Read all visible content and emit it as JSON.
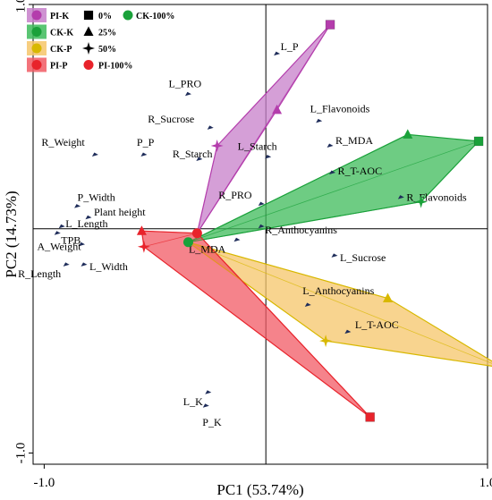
{
  "chart_data": {
    "type": "scatter",
    "subtype": "pca-biplot",
    "xlabel": "PC1 (53.74%)",
    "ylabel": "PC2 (14.73%)",
    "xlim": [
      -1.05,
      1.0
    ],
    "ylim": [
      -1.05,
      1.0
    ],
    "x_ticks": [
      {
        "value": -1.0,
        "label": "-1.0"
      },
      {
        "value": 1.0,
        "label": "1.0"
      }
    ],
    "y_ticks": [
      {
        "value": 1.0,
        "label": "1.0"
      },
      {
        "value": -1.0,
        "label": "-1.0"
      }
    ],
    "grid": false,
    "zero_lines": true,
    "legend_position": "top-left",
    "groups": [
      {
        "name": "PI-K",
        "color": "#b43dac",
        "fill": "#c77fca",
        "points": [
          {
            "level": "0%",
            "x": 0.29,
            "y": 0.91
          },
          {
            "level": "25%",
            "x": 0.05,
            "y": 0.53
          },
          {
            "level": "50%",
            "x": -0.22,
            "y": 0.37
          }
        ]
      },
      {
        "name": "CK-K",
        "color": "#1aa13a",
        "fill": "#3dbb5a",
        "points": [
          {
            "level": "0%",
            "x": 0.96,
            "y": 0.39
          },
          {
            "level": "25%",
            "x": 0.64,
            "y": 0.42
          },
          {
            "level": "50%",
            "x": 0.7,
            "y": 0.12
          }
        ]
      },
      {
        "name": "CK-P",
        "color": "#d8b800",
        "fill": "#f6c66a",
        "points": [
          {
            "level": "0%",
            "x": 1.07,
            "y": -0.62
          },
          {
            "level": "25%",
            "x": 0.55,
            "y": -0.31
          },
          {
            "level": "50%",
            "x": 0.27,
            "y": -0.5
          }
        ]
      },
      {
        "name": "PI-P",
        "color": "#e8232b",
        "fill": "#f15a64",
        "points": [
          {
            "level": "0%",
            "x": 0.47,
            "y": -0.84
          },
          {
            "level": "25%",
            "x": -0.56,
            "y": -0.01
          },
          {
            "level": "50%",
            "x": -0.55,
            "y": -0.08
          }
        ]
      }
    ],
    "centroids": [
      {
        "group": "PI-P",
        "level": "100%",
        "x": -0.31,
        "y": -0.02
      },
      {
        "group": "CK",
        "level": "100%",
        "x": -0.35,
        "y": -0.06
      }
    ],
    "loadings": [
      {
        "label": "L_P",
        "x": 0.05,
        "y": 0.78
      },
      {
        "label": "L_PRO",
        "x": -0.35,
        "y": 0.6
      },
      {
        "label": "L_Flavonoids",
        "x": 0.24,
        "y": 0.48
      },
      {
        "label": "R_Sucrose",
        "x": -0.25,
        "y": 0.45
      },
      {
        "label": "R_MDA",
        "x": 0.29,
        "y": 0.37
      },
      {
        "label": "R_Weight",
        "x": -0.77,
        "y": 0.33
      },
      {
        "label": "P_P",
        "x": -0.55,
        "y": 0.33
      },
      {
        "label": "R_Starch",
        "x": -0.3,
        "y": 0.31
      },
      {
        "label": "L_Starch",
        "x": 0.01,
        "y": 0.32
      },
      {
        "label": "R_T-AOC",
        "x": 0.3,
        "y": 0.25
      },
      {
        "label": "R_Flavonoids",
        "x": 0.61,
        "y": 0.14
      },
      {
        "label": "R_PRO",
        "x": -0.02,
        "y": 0.11
      },
      {
        "label": "P_Width",
        "x": -0.85,
        "y": 0.1
      },
      {
        "label": "Plant height",
        "x": -0.8,
        "y": 0.05
      },
      {
        "label": "L_Length",
        "x": -0.92,
        "y": 0.01
      },
      {
        "label": "TPB",
        "x": -0.94,
        "y": -0.02
      },
      {
        "label": "R_Anthocyanins",
        "x": -0.02,
        "y": 0.01
      },
      {
        "label": "L_MDA",
        "x": -0.13,
        "y": -0.05
      },
      {
        "label": "A_Weight",
        "x": -0.83,
        "y": -0.07
      },
      {
        "label": "L_Sucrose",
        "x": 0.31,
        "y": -0.12
      },
      {
        "label": "R_Length",
        "x": -0.9,
        "y": -0.16
      },
      {
        "label": "L_Width",
        "x": -0.82,
        "y": -0.16
      },
      {
        "label": "L_Anthocyanins",
        "x": 0.19,
        "y": -0.34
      },
      {
        "label": "L_T-AOC",
        "x": 0.37,
        "y": -0.46
      },
      {
        "label": "L_K",
        "x": -0.26,
        "y": -0.73
      },
      {
        "label": "P_K",
        "x": -0.27,
        "y": -0.79
      }
    ],
    "legend": {
      "groups": [
        "PI-K",
        "CK-K",
        "CK-P",
        "PI-P"
      ],
      "levels": [
        "0%",
        "25%",
        "50%",
        "PI-100%"
      ],
      "ck_entry": "CK-100%"
    }
  }
}
